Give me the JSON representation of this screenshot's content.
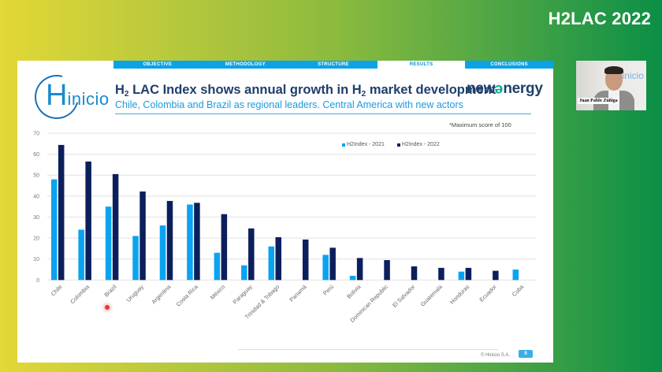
{
  "event": {
    "title": "H2LAC 2022"
  },
  "slide": {
    "nav_tabs": [
      {
        "label": "OBJECTIVE",
        "active": false
      },
      {
        "label": "METHODOLOGY",
        "active": false
      },
      {
        "label": "STRUCTURE",
        "active": false
      },
      {
        "label": "RESULTS",
        "active": true
      },
      {
        "label": "CONCLUSIONS",
        "active": false
      }
    ],
    "logo": {
      "cap": "H",
      "rest": "inicio"
    },
    "headline": {
      "part1": "H",
      "sub1": "2",
      "part2": " LAC Index shows annual growth in H",
      "sub2": "2",
      "part3": " market development"
    },
    "subheadline": "Chile, Colombia and Brazil as regional leaders. Central America with new actors",
    "partner_logo": {
      "pre": "new",
      "e": "e",
      "post": "nergy"
    },
    "note": "*Maximum score of 100",
    "footer": {
      "copyright": "© Hinicio S.A.",
      "page_number": "9"
    }
  },
  "camera": {
    "speaker_name": "Juan Pablo Zúñiga",
    "background_logo": "inicio"
  },
  "colors": {
    "series_2021": "#0aa3f0",
    "series_2022": "#0b1f5c",
    "accent": "#1a9ae0",
    "gridline": "#e6e6e6"
  },
  "chart_data": {
    "type": "bar",
    "title": "",
    "xlabel": "",
    "ylabel": "",
    "ylim": [
      0,
      70
    ],
    "yticks": [
      0,
      10,
      20,
      30,
      40,
      50,
      60,
      70
    ],
    "grid": true,
    "legend_position": "top-right",
    "categories": [
      "Chile",
      "Colombia",
      "Brazil",
      "Uruguay",
      "Argentina",
      "Costa Rica",
      "México",
      "Paraguay",
      "Trinidad & Tobago",
      "Panamá",
      "Perú",
      "Bolivia",
      "Dominican Republic",
      "El Salvador",
      "Guatemala",
      "Honduras",
      "Ecuador",
      "Cuba"
    ],
    "series": [
      {
        "name": "H2Index - 2021",
        "values": [
          48,
          24,
          35,
          21,
          26,
          36,
          13,
          7,
          16,
          null,
          12,
          2,
          null,
          null,
          null,
          4,
          null,
          5
        ]
      },
      {
        "name": "H2Index - 2022",
        "values": [
          64.4,
          56.5,
          50.5,
          42.2,
          37.7,
          36.8,
          31.4,
          24.6,
          20.4,
          19.3,
          15.4,
          10.5,
          9.5,
          6.5,
          5.8,
          5.8,
          4.4,
          null
        ]
      }
    ]
  }
}
